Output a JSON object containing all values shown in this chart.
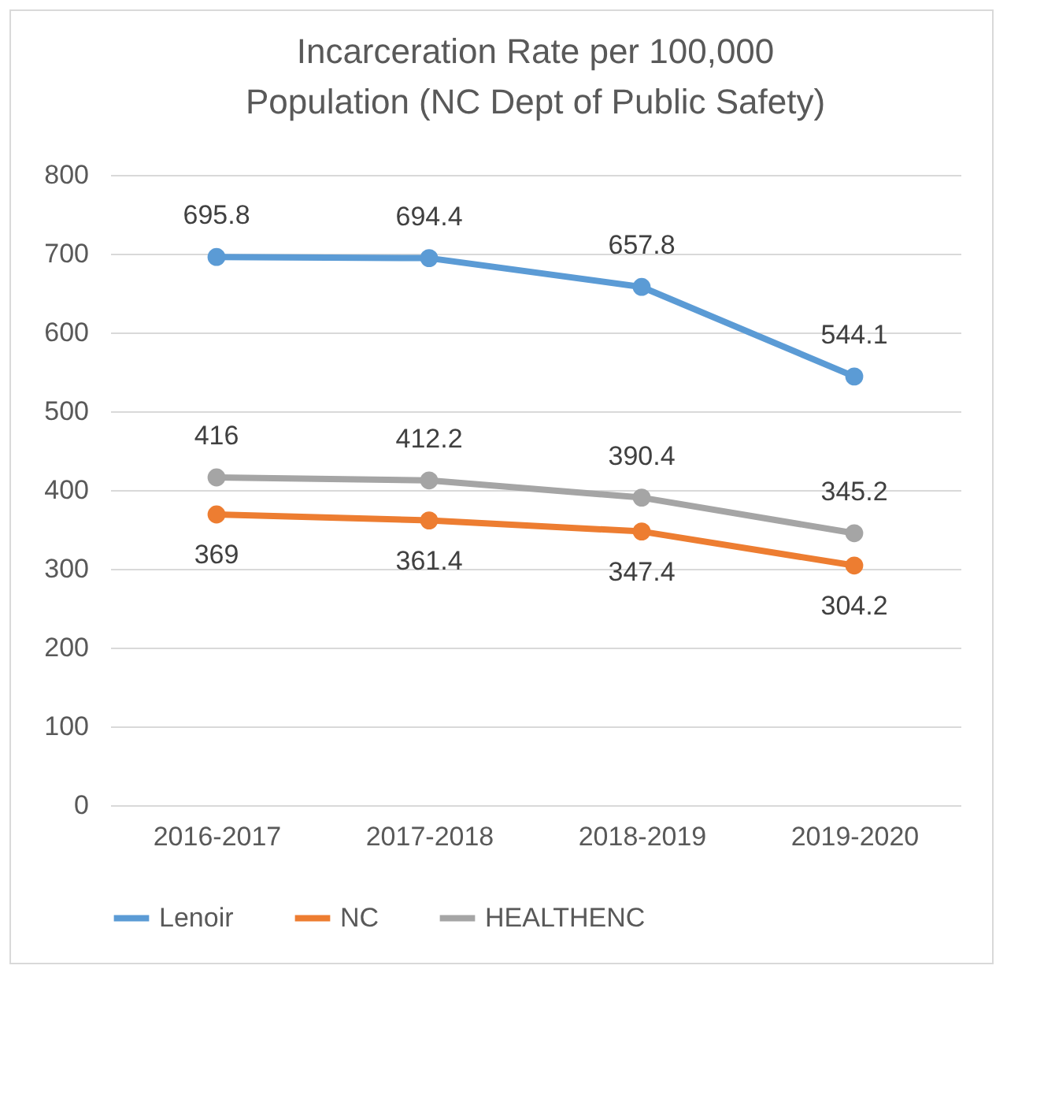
{
  "chart_data": {
    "type": "line",
    "title": "Incarceration Rate per 100,000 Population (NC Dept of Public Safety)",
    "categories": [
      "2016-2017",
      "2017-2018",
      "2018-2019",
      "2019-2020"
    ],
    "series": [
      {
        "name": "Lenoir",
        "color": "#5b9bd5",
        "values": [
          695.8,
          694.4,
          657.8,
          544.1
        ]
      },
      {
        "name": "NC",
        "color": "#ed7d31",
        "values": [
          369,
          361.4,
          347.4,
          304.2
        ]
      },
      {
        "name": "HEALTHENC",
        "color": "#a5a5a5",
        "values": [
          416,
          412.2,
          390.4,
          345.2
        ]
      }
    ],
    "ylim": [
      0,
      800
    ],
    "yticks": [
      0,
      100,
      200,
      300,
      400,
      500,
      600,
      700,
      800
    ],
    "grid": "y",
    "legend": "bottom",
    "marker": "circle",
    "data_labels": true
  }
}
